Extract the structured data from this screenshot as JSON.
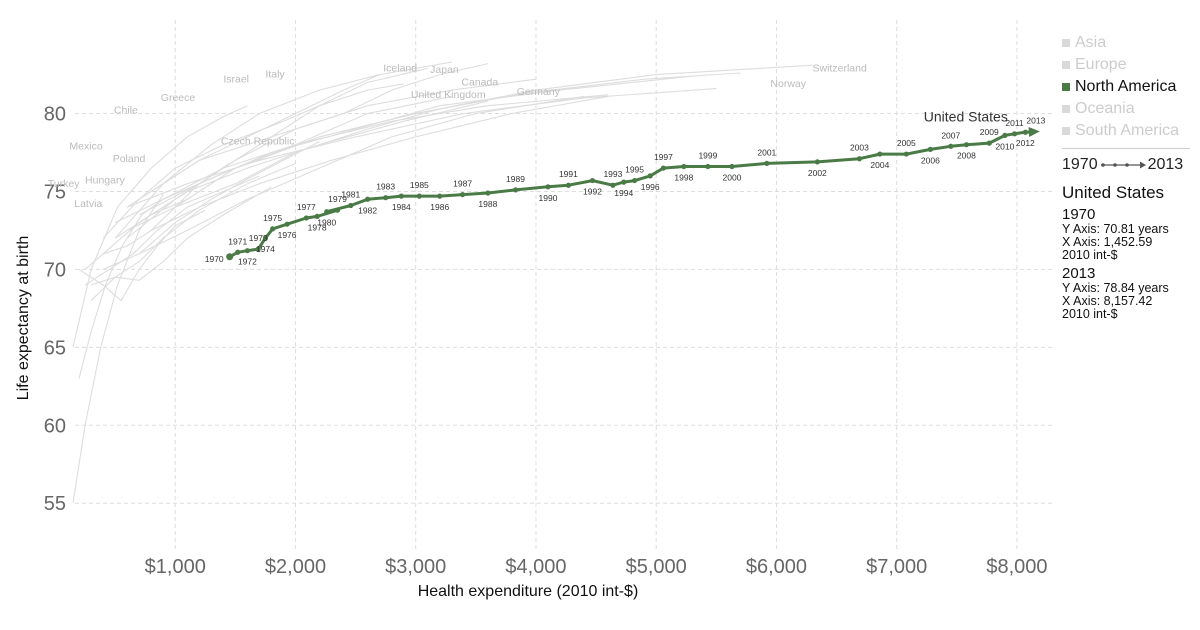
{
  "chart_data": {
    "type": "scatter",
    "subtype": "connected-scatter",
    "xlabel": "Health expenditure (2010 int-$)",
    "ylabel": "Life expectancy at birth",
    "xlim": [
      0,
      8300
    ],
    "ylim": [
      52,
      86
    ],
    "xticks": [
      {
        "value": 1000,
        "label": "$1,000"
      },
      {
        "value": 2000,
        "label": "$2,000"
      },
      {
        "value": 3000,
        "label": "$3,000"
      },
      {
        "value": 4000,
        "label": "$4,000"
      },
      {
        "value": 5000,
        "label": "$5,000"
      },
      {
        "value": 6000,
        "label": "$6,000"
      },
      {
        "value": 7000,
        "label": "$7,000"
      },
      {
        "value": 8000,
        "label": "$8,000"
      }
    ],
    "yticks": [
      {
        "value": 55,
        "label": "55"
      },
      {
        "value": 60,
        "label": "60"
      },
      {
        "value": 65,
        "label": "65"
      },
      {
        "value": 70,
        "label": "70"
      },
      {
        "value": 75,
        "label": "75"
      },
      {
        "value": 80,
        "label": "80"
      }
    ],
    "grid": true,
    "legend_position": "right",
    "colors": {
      "highlight": "#4a7b47",
      "background_lines": "#dddddd",
      "muted_text": "#bbbbbb",
      "grid": "#dddddd"
    },
    "highlight_series": {
      "name": "United States",
      "points": [
        {
          "year": 1970,
          "x": 1452.59,
          "y": 70.81
        },
        {
          "year": 1971,
          "x": 1520,
          "y": 71.1
        },
        {
          "year": 1972,
          "x": 1600,
          "y": 71.2
        },
        {
          "year": 1973,
          "x": 1690,
          "y": 71.3
        },
        {
          "year": 1974,
          "x": 1750,
          "y": 72.0
        },
        {
          "year": 1975,
          "x": 1810,
          "y": 72.6
        },
        {
          "year": 1976,
          "x": 1930,
          "y": 72.9
        },
        {
          "year": 1977,
          "x": 2090,
          "y": 73.3
        },
        {
          "year": 1978,
          "x": 2180,
          "y": 73.4
        },
        {
          "year": 1979,
          "x": 2350,
          "y": 73.8
        },
        {
          "year": 1980,
          "x": 2260,
          "y": 73.7
        },
        {
          "year": 1981,
          "x": 2460,
          "y": 74.1
        },
        {
          "year": 1982,
          "x": 2600,
          "y": 74.5
        },
        {
          "year": 1983,
          "x": 2750,
          "y": 74.6
        },
        {
          "year": 1984,
          "x": 2880,
          "y": 74.7
        },
        {
          "year": 1985,
          "x": 3030,
          "y": 74.7
        },
        {
          "year": 1986,
          "x": 3200,
          "y": 74.7
        },
        {
          "year": 1987,
          "x": 3390,
          "y": 74.8
        },
        {
          "year": 1988,
          "x": 3600,
          "y": 74.9
        },
        {
          "year": 1989,
          "x": 3830,
          "y": 75.1
        },
        {
          "year": 1990,
          "x": 4100,
          "y": 75.3
        },
        {
          "year": 1991,
          "x": 4270,
          "y": 75.4
        },
        {
          "year": 1992,
          "x": 4470,
          "y": 75.7
        },
        {
          "year": 1993,
          "x": 4640,
          "y": 75.4
        },
        {
          "year": 1994,
          "x": 4730,
          "y": 75.6
        },
        {
          "year": 1995,
          "x": 4820,
          "y": 75.7
        },
        {
          "year": 1996,
          "x": 4950,
          "y": 76.0
        },
        {
          "year": 1997,
          "x": 5060,
          "y": 76.5
        },
        {
          "year": 1998,
          "x": 5230,
          "y": 76.6
        },
        {
          "year": 1999,
          "x": 5430,
          "y": 76.6
        },
        {
          "year": 2000,
          "x": 5630,
          "y": 76.6
        },
        {
          "year": 2001,
          "x": 5920,
          "y": 76.8
        },
        {
          "year": 2002,
          "x": 6340,
          "y": 76.9
        },
        {
          "year": 2003,
          "x": 6690,
          "y": 77.1
        },
        {
          "year": 2004,
          "x": 6860,
          "y": 77.4
        },
        {
          "year": 2005,
          "x": 7080,
          "y": 77.4
        },
        {
          "year": 2006,
          "x": 7280,
          "y": 77.7
        },
        {
          "year": 2007,
          "x": 7450,
          "y": 77.9
        },
        {
          "year": 2008,
          "x": 7580,
          "y": 78.0
        },
        {
          "year": 2009,
          "x": 7770,
          "y": 78.1
        },
        {
          "year": 2010,
          "x": 7900,
          "y": 78.6
        },
        {
          "year": 2011,
          "x": 7980,
          "y": 78.7
        },
        {
          "year": 2012,
          "x": 8070,
          "y": 78.8
        },
        {
          "year": 2013,
          "x": 8157.42,
          "y": 78.84
        }
      ]
    },
    "background_series": [
      {
        "name": "Mexico",
        "points": [
          [
            200,
            63
          ],
          [
            300,
            66
          ],
          [
            420,
            69
          ],
          [
            560,
            71.5
          ],
          [
            720,
            73.5
          ],
          [
            900,
            74.5
          ]
        ]
      },
      {
        "name": "Turkey",
        "points": [
          [
            150,
            55
          ],
          [
            250,
            60
          ],
          [
            380,
            65
          ],
          [
            520,
            69
          ],
          [
            700,
            72.5
          ],
          [
            900,
            74.8
          ]
        ]
      },
      {
        "name": "Chile",
        "points": [
          [
            150,
            65
          ],
          [
            300,
            70
          ],
          [
            520,
            74
          ],
          [
            800,
            76.5
          ],
          [
            1100,
            78.5
          ],
          [
            1400,
            79.8
          ],
          [
            1600,
            80.5
          ]
        ]
      },
      {
        "name": "Poland",
        "points": [
          [
            250,
            70
          ],
          [
            400,
            71
          ],
          [
            600,
            71.5
          ],
          [
            800,
            72.5
          ],
          [
            1000,
            74
          ],
          [
            1200,
            75.5
          ],
          [
            1450,
            76.8
          ]
        ]
      },
      {
        "name": "Hungary",
        "points": [
          [
            300,
            69
          ],
          [
            500,
            69.5
          ],
          [
            700,
            69.3
          ],
          [
            900,
            70.5
          ],
          [
            1100,
            72
          ],
          [
            1400,
            73.5
          ],
          [
            1800,
            75.3
          ]
        ]
      },
      {
        "name": "Latvia",
        "points": [
          [
            200,
            70
          ],
          [
            400,
            69
          ],
          [
            550,
            68
          ],
          [
            700,
            70
          ],
          [
            850,
            71.5
          ],
          [
            1000,
            72.8
          ],
          [
            1250,
            73.8
          ]
        ]
      },
      {
        "name": "Greece",
        "points": [
          [
            400,
            72
          ],
          [
            700,
            74.5
          ],
          [
            1000,
            76.5
          ],
          [
            1400,
            78
          ],
          [
            1900,
            79.5
          ],
          [
            2200,
            80.5
          ],
          [
            2600,
            81.5
          ],
          [
            2900,
            81.9
          ]
        ]
      },
      {
        "name": "Czech Republic",
        "points": [
          [
            400,
            70
          ],
          [
            700,
            71
          ],
          [
            1000,
            73
          ],
          [
            1300,
            74.5
          ],
          [
            1600,
            75.8
          ],
          [
            1900,
            77
          ],
          [
            2200,
            78.2
          ]
        ]
      },
      {
        "name": "Israel",
        "points": [
          [
            800,
            75
          ],
          [
            1200,
            77
          ],
          [
            1600,
            78.5
          ],
          [
            2000,
            80
          ],
          [
            2400,
            81.5
          ],
          [
            2700,
            82.5
          ]
        ]
      },
      {
        "name": "Italy",
        "points": [
          [
            600,
            72
          ],
          [
            1000,
            74.5
          ],
          [
            1400,
            76.5
          ],
          [
            1800,
            78.5
          ],
          [
            2200,
            80.5
          ],
          [
            2600,
            82
          ],
          [
            3100,
            82.9
          ]
        ]
      },
      {
        "name": "Iceland",
        "points": [
          [
            600,
            74
          ],
          [
            1200,
            77
          ],
          [
            1800,
            78.5
          ],
          [
            2400,
            80
          ],
          [
            2800,
            81.5
          ],
          [
            3200,
            82.5
          ],
          [
            3600,
            83.2
          ]
        ]
      },
      {
        "name": "Japan",
        "points": [
          [
            500,
            72
          ],
          [
            900,
            75.5
          ],
          [
            1300,
            78
          ],
          [
            1700,
            80
          ],
          [
            2200,
            81.5
          ],
          [
            2700,
            82.5
          ],
          [
            3300,
            83.3
          ]
        ]
      },
      {
        "name": "United Kingdom",
        "points": [
          [
            500,
            72
          ],
          [
            800,
            73.5
          ],
          [
            1100,
            74.5
          ],
          [
            1500,
            76.5
          ],
          [
            2000,
            78
          ],
          [
            2600,
            80
          ],
          [
            3300,
            81.1
          ]
        ]
      },
      {
        "name": "Canada",
        "points": [
          [
            700,
            73
          ],
          [
            1100,
            75
          ],
          [
            1500,
            77
          ],
          [
            2000,
            79
          ],
          [
            2600,
            80.5
          ],
          [
            3300,
            81.5
          ],
          [
            4000,
            82.2
          ]
        ]
      },
      {
        "name": "Germany",
        "points": [
          [
            700,
            71
          ],
          [
            1100,
            72.5
          ],
          [
            1600,
            74.5
          ],
          [
            2200,
            76.5
          ],
          [
            2800,
            78.5
          ],
          [
            3500,
            80
          ],
          [
            4400,
            81.1
          ]
        ]
      },
      {
        "name": "Switzerland",
        "points": [
          [
            1000,
            74
          ],
          [
            1500,
            76.5
          ],
          [
            2200,
            78.5
          ],
          [
            3000,
            80
          ],
          [
            4000,
            81.5
          ],
          [
            5000,
            82.5
          ],
          [
            6300,
            83.1
          ]
        ]
      },
      {
        "name": "Norway",
        "points": [
          [
            600,
            74
          ],
          [
            1100,
            75.5
          ],
          [
            1700,
            77
          ],
          [
            2500,
            78.5
          ],
          [
            3400,
            80
          ],
          [
            4400,
            81
          ],
          [
            5500,
            81.6
          ]
        ]
      },
      {
        "name": "",
        "points": [
          [
            500,
            73
          ],
          [
            900,
            74.5
          ],
          [
            1400,
            76.5
          ],
          [
            2000,
            78
          ],
          [
            2800,
            79.5
          ],
          [
            3600,
            80.5
          ],
          [
            4600,
            81.2
          ]
        ]
      },
      {
        "name": "",
        "points": [
          [
            600,
            72.5
          ],
          [
            1000,
            74
          ],
          [
            1500,
            75.5
          ],
          [
            2000,
            77.5
          ],
          [
            2600,
            79
          ],
          [
            3200,
            80.3
          ],
          [
            3900,
            81.3
          ]
        ]
      },
      {
        "name": "",
        "points": [
          [
            800,
            72.5
          ],
          [
            1200,
            74
          ],
          [
            1700,
            75.5
          ],
          [
            2300,
            77
          ],
          [
            3000,
            78.5
          ],
          [
            3800,
            80
          ],
          [
            4600,
            81.1
          ]
        ]
      },
      {
        "name": "",
        "points": [
          [
            400,
            71
          ],
          [
            700,
            73
          ],
          [
            1100,
            75
          ],
          [
            1600,
            76.5
          ],
          [
            2200,
            78
          ],
          [
            2900,
            79.5
          ],
          [
            3600,
            80.8
          ]
        ]
      },
      {
        "name": "",
        "points": [
          [
            300,
            68
          ],
          [
            500,
            69.5
          ],
          [
            700,
            70.5
          ],
          [
            900,
            72
          ],
          [
            1200,
            73.8
          ],
          [
            1600,
            75.5
          ],
          [
            2000,
            76.8
          ]
        ]
      },
      {
        "name": "",
        "points": [
          [
            250,
            69
          ],
          [
            450,
            70
          ],
          [
            650,
            71
          ],
          [
            850,
            72.5
          ],
          [
            1100,
            74
          ],
          [
            1400,
            75
          ],
          [
            1700,
            76
          ]
        ]
      },
      {
        "name": "",
        "points": [
          [
            700,
            73.5
          ],
          [
            1200,
            75.5
          ],
          [
            1800,
            77.5
          ],
          [
            2500,
            79
          ],
          [
            3200,
            80.5
          ],
          [
            4200,
            81.5
          ],
          [
            5300,
            82.4
          ]
        ]
      },
      {
        "name": "",
        "points": [
          [
            900,
            74.5
          ],
          [
            1500,
            76.5
          ],
          [
            2200,
            78.5
          ],
          [
            3000,
            80
          ],
          [
            3900,
            81.3
          ],
          [
            4900,
            82.2
          ],
          [
            5700,
            82.6
          ]
        ]
      }
    ],
    "background_labels": [
      {
        "text": "Israel",
        "x": 1400,
        "y": 82.0
      },
      {
        "text": "Italy",
        "x": 1750,
        "y": 82.3
      },
      {
        "text": "Iceland",
        "x": 2730,
        "y": 82.7
      },
      {
        "text": "Japan",
        "x": 3120,
        "y": 82.6
      },
      {
        "text": "Canada",
        "x": 3380,
        "y": 81.8
      },
      {
        "text": "Switzerland",
        "x": 6300,
        "y": 82.7
      },
      {
        "text": "Norway",
        "x": 5950,
        "y": 81.7
      },
      {
        "text": "United Kingdom",
        "x": 2960,
        "y": 81.0
      },
      {
        "text": "Germany",
        "x": 3840,
        "y": 81.2
      },
      {
        "text": "Greece",
        "x": 880,
        "y": 80.8
      },
      {
        "text": "Chile",
        "x": 490,
        "y": 80.0
      },
      {
        "text": "Czech Republic",
        "x": 1380,
        "y": 78.0
      },
      {
        "text": "Mexico",
        "x": 120,
        "y": 77.7
      },
      {
        "text": "Poland",
        "x": 480,
        "y": 76.9
      },
      {
        "text": "Hungary",
        "x": 250,
        "y": 75.5
      },
      {
        "text": "Turkey",
        "x": -60,
        "y": 75.3
      },
      {
        "text": "Latvia",
        "x": 160,
        "y": 74.0
      }
    ],
    "highlight_label": "United States"
  },
  "legend": {
    "items": [
      {
        "label": "Asia",
        "active": false
      },
      {
        "label": "Europe",
        "active": false
      },
      {
        "label": "North America",
        "active": true
      },
      {
        "label": "Oceania",
        "active": false
      },
      {
        "label": "South America",
        "active": false
      }
    ],
    "range_start": "1970",
    "range_end": "2013"
  },
  "info": {
    "title": "United States",
    "start": {
      "year": "1970",
      "y_line": "Y Axis: 70.81 years",
      "x_line": "X Axis: 1,452.59",
      "unit_line": "2010 int-$"
    },
    "end": {
      "year": "2013",
      "y_line": "Y Axis: 78.84 years",
      "x_line": "X Axis: 8,157.42",
      "unit_line": "2010 int-$"
    }
  }
}
